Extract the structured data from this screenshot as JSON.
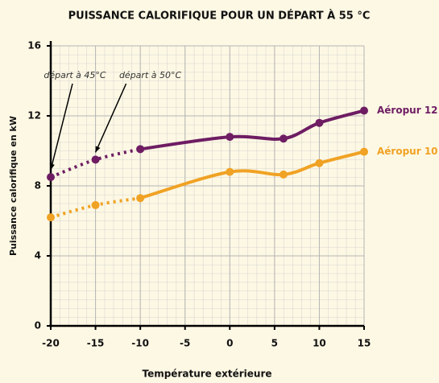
{
  "chart_data": {
    "type": "line",
    "title": "PUISSANCE CALORIFIQUE POUR UN DÉPART À 55 °C",
    "x_label": "Température extérieure",
    "y_label": "Puissance calorifique en kW",
    "x": [
      -20,
      -15,
      -10,
      0,
      6,
      10,
      15
    ],
    "series": [
      {
        "name": "Aéropur 12",
        "color": "#6e1d63",
        "values": [
          8.5,
          9.5,
          10.1,
          10.8,
          10.7,
          11.6,
          12.3
        ]
      },
      {
        "name": "Aéropur 10",
        "color": "#f0a224",
        "values": [
          6.2,
          6.9,
          7.3,
          8.8,
          8.65,
          9.3,
          9.95
        ]
      }
    ],
    "dotted_below": -10,
    "annotations": [
      {
        "text": "départ à 45°C",
        "x": -20
      },
      {
        "text": "départ à 50°C",
        "x": -15
      }
    ],
    "xlim": [
      -20,
      15
    ],
    "xticks": [
      -20,
      -15,
      -10,
      -5,
      0,
      5,
      10,
      15
    ],
    "ylim": [
      0,
      16
    ],
    "yticks": [
      0,
      4,
      8,
      12,
      16
    ],
    "grid": true
  }
}
